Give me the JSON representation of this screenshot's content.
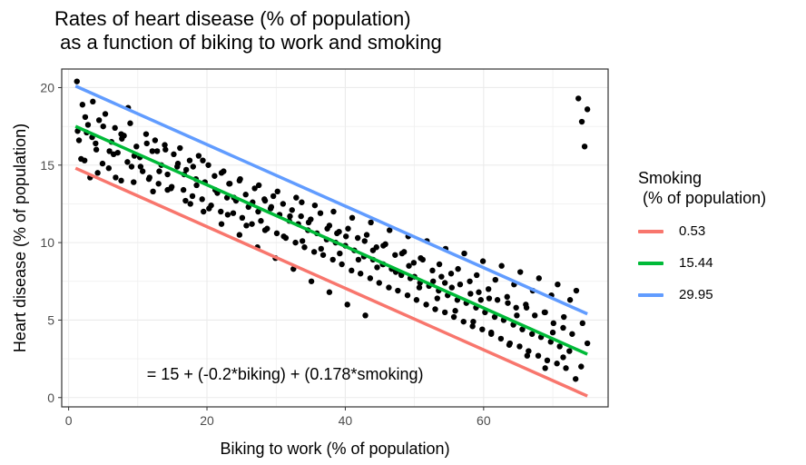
{
  "chart_data": {
    "type": "scatter",
    "title": "Rates of heart disease (% of population)\n as a function of biking to work and smoking",
    "xlabel": "Biking to work (% of population)",
    "ylabel": "Heart disease (% of population)",
    "xlim": [
      -1,
      78
    ],
    "ylim": [
      -0.6,
      21.2
    ],
    "x_ticks": [
      0,
      20,
      40,
      60
    ],
    "y_ticks": [
      0,
      5,
      10,
      15,
      20
    ],
    "grid": true,
    "annotation": {
      "text": "= 15 + (-0.2*biking) + (0.178*smoking)",
      "x": 31.3,
      "y": 1.5
    },
    "legend": {
      "title": "Smoking\n (% of population)",
      "position": "right",
      "entries": [
        {
          "label": "0.53",
          "color": "#F8766D"
        },
        {
          "label": "15.44",
          "color": "#00BA38"
        },
        {
          "label": "29.95",
          "color": "#619CFF"
        }
      ]
    },
    "series": [
      {
        "name": "0.53",
        "type": "line",
        "color": "#F8766D",
        "x": [
          1,
          75
        ],
        "y": [
          14.8,
          0.1
        ]
      },
      {
        "name": "15.44",
        "type": "line",
        "color": "#00BA38",
        "x": [
          1,
          75
        ],
        "y": [
          17.5,
          2.8
        ]
      },
      {
        "name": "29.95",
        "type": "line",
        "color": "#619CFF",
        "x": [
          1,
          75
        ],
        "y": [
          20.1,
          5.4
        ]
      }
    ],
    "points": {
      "color": "#000000",
      "x": [
        1.2,
        1.5,
        2.0,
        2.3,
        2.8,
        3.1,
        3.5,
        4.0,
        4.4,
        4.9,
        5.3,
        5.8,
        6.2,
        6.7,
        7.1,
        7.6,
        8.0,
        8.5,
        8.9,
        9.4,
        9.8,
        10.3,
        10.7,
        11.2,
        11.6,
        12.1,
        12.5,
        13.0,
        13.4,
        13.9,
        14.3,
        14.8,
        15.2,
        15.7,
        16.1,
        16.6,
        17.0,
        17.5,
        17.9,
        18.4,
        18.8,
        19.3,
        19.7,
        20.2,
        20.6,
        21.1,
        21.5,
        22.0,
        22.4,
        22.9,
        23.3,
        23.8,
        24.2,
        24.7,
        25.1,
        25.6,
        26.0,
        26.5,
        26.9,
        27.4,
        27.8,
        28.3,
        28.7,
        29.2,
        29.6,
        30.1,
        30.5,
        31.0,
        31.4,
        31.9,
        32.3,
        32.8,
        33.2,
        33.7,
        34.1,
        34.6,
        35.0,
        35.5,
        35.9,
        36.4,
        36.8,
        37.3,
        37.7,
        38.2,
        38.6,
        39.1,
        39.5,
        40.0,
        40.4,
        40.9,
        41.3,
        41.8,
        42.2,
        42.7,
        43.1,
        43.6,
        44.0,
        44.5,
        44.9,
        45.4,
        45.8,
        46.3,
        46.7,
        47.2,
        47.6,
        48.1,
        48.5,
        49.0,
        49.4,
        49.9,
        50.3,
        50.8,
        51.2,
        51.7,
        52.1,
        52.6,
        53.0,
        53.5,
        53.9,
        54.4,
        54.8,
        55.3,
        55.7,
        56.2,
        56.6,
        57.1,
        57.5,
        58.0,
        58.4,
        58.9,
        59.3,
        59.8,
        60.2,
        60.7,
        61.1,
        61.6,
        62.0,
        62.5,
        62.9,
        63.4,
        63.8,
        64.3,
        64.7,
        65.2,
        65.6,
        66.1,
        66.5,
        67.0,
        67.4,
        67.9,
        68.3,
        68.8,
        69.2,
        69.7,
        70.1,
        70.6,
        71.0,
        71.5,
        71.9,
        72.4,
        72.8,
        73.3,
        73.7,
        74.2,
        74.6,
        75.0,
        1.8,
        2.6,
        3.4,
        4.2,
        5.0,
        5.9,
        6.8,
        7.7,
        8.6,
        9.5,
        10.4,
        11.3,
        12.2,
        13.1,
        14.0,
        14.9,
        15.8,
        16.7,
        17.6,
        18.5,
        19.4,
        20.3,
        21.2,
        22.1,
        23.0,
        23.9,
        24.8,
        25.7,
        26.6,
        27.5,
        28.4,
        29.3,
        30.2,
        31.1,
        32.0,
        32.9,
        33.8,
        34.7,
        35.6,
        36.5,
        37.4,
        38.3,
        39.2,
        40.1,
        41.0,
        41.9,
        42.8,
        43.7,
        44.6,
        45.5,
        46.4,
        47.3,
        48.2,
        49.1,
        50.0,
        50.9,
        51.8,
        52.7,
        53.6,
        54.5,
        55.4,
        56.3,
        57.2,
        58.1,
        59.0,
        59.9,
        60.8,
        61.7,
        62.6,
        63.5,
        64.4,
        65.3,
        66.2,
        67.1,
        68.0,
        68.9,
        69.8,
        70.7,
        71.6,
        72.5,
        73.4,
        74.3,
        1.3,
        3.9,
        6.5,
        9.1,
        11.7,
        14.3,
        16.9,
        19.5,
        22.1,
        24.7,
        27.3,
        29.9,
        32.5,
        35.1,
        37.7,
        40.3,
        42.9,
        45.5,
        48.1,
        50.7,
        53.3,
        55.9,
        58.5,
        61.1,
        63.7,
        66.3,
        68.9,
        71.5,
        74.1,
        2.4,
        7.6,
        12.8,
        18.0,
        23.2,
        28.4,
        33.6,
        38.8,
        44.0,
        49.2,
        54.4,
        59.6,
        64.8,
        70.0,
        75.0
      ],
      "y": [
        20.4,
        16.6,
        18.9,
        15.3,
        17.6,
        14.2,
        19.1,
        16.0,
        17.9,
        15.1,
        18.3,
        14.8,
        16.5,
        17.4,
        15.8,
        14.0,
        16.9,
        15.2,
        17.7,
        13.9,
        16.2,
        15.5,
        14.6,
        17.0,
        14.1,
        15.9,
        16.6,
        13.8,
        15.0,
        16.3,
        14.4,
        13.5,
        15.7,
        14.9,
        16.1,
        13.4,
        14.7,
        15.3,
        13.0,
        14.1,
        15.6,
        12.8,
        13.9,
        15.0,
        12.4,
        14.3,
        13.2,
        12.0,
        14.6,
        12.9,
        13.8,
        11.9,
        12.7,
        14.0,
        11.6,
        13.1,
        12.3,
        11.2,
        13.5,
        12.0,
        11.4,
        12.8,
        10.9,
        12.2,
        13.0,
        10.6,
        11.8,
        12.5,
        10.3,
        11.4,
        12.1,
        10.0,
        11.2,
        12.6,
        9.7,
        10.8,
        11.5,
        9.4,
        10.6,
        11.9,
        9.2,
        10.2,
        11.1,
        8.9,
        10.0,
        10.7,
        8.6,
        9.8,
        10.9,
        8.2,
        9.5,
        10.3,
        8.0,
        9.1,
        10.5,
        7.7,
        8.9,
        9.7,
        7.4,
        8.6,
        9.9,
        7.1,
        8.3,
        9.2,
        6.9,
        8.0,
        9.4,
        6.6,
        7.7,
        8.7,
        6.3,
        7.4,
        8.9,
        6.0,
        7.2,
        8.2,
        5.7,
        6.9,
        7.8,
        5.5,
        6.6,
        8.0,
        5.2,
        6.3,
        7.3,
        4.9,
        6.1,
        7.5,
        4.6,
        5.8,
        6.8,
        4.4,
        5.5,
        7.0,
        4.1,
        5.2,
        6.3,
        3.8,
        5.0,
        6.5,
        3.5,
        4.7,
        5.8,
        3.3,
        4.4,
        6.0,
        3.0,
        4.1,
        5.3,
        2.7,
        3.9,
        5.5,
        2.4,
        3.6,
        4.8,
        2.2,
        3.3,
        4.5,
        1.9,
        3.0,
        4.1,
        1.2,
        19.3,
        17.8,
        16.2,
        18.6,
        15.4,
        17.1,
        16.8,
        14.5,
        17.5,
        15.9,
        14.2,
        16.7,
        18.7,
        15.6,
        14.9,
        16.4,
        13.3,
        14.6,
        16.0,
        13.6,
        15.1,
        14.4,
        12.5,
        13.7,
        15.3,
        12.2,
        13.4,
        14.5,
        11.8,
        12.9,
        14.1,
        11.1,
        12.6,
        13.7,
        10.8,
        12.3,
        13.3,
        10.4,
        11.7,
        12.9,
        10.1,
        11.3,
        12.4,
        9.6,
        10.9,
        12.0,
        9.3,
        10.4,
        11.6,
        8.9,
        10.1,
        11.3,
        8.4,
        9.8,
        10.8,
        8.1,
        9.3,
        10.4,
        7.8,
        9.0,
        10.1,
        7.5,
        8.6,
        9.6,
        7.1,
        8.3,
        9.3,
        6.7,
        7.9,
        8.8,
        6.4,
        7.6,
        8.5,
        6.1,
        7.3,
        8.1,
        5.8,
        6.9,
        7.7,
        5.5,
        6.6,
        7.3,
        5.2,
        6.3,
        6.9,
        4.8,
        17.2,
        16.4,
        15.7,
        14.9,
        14.2,
        13.4,
        12.7,
        12.0,
        11.2,
        10.5,
        9.7,
        9.0,
        8.3,
        7.5,
        6.8,
        6.0,
        5.3,
        8.6,
        7.9,
        7.1,
        6.4,
        5.6,
        4.9,
        4.2,
        3.4,
        2.7,
        1.9,
        2.6,
        2.0,
        18.1,
        17.0,
        15.9,
        14.9,
        13.8,
        12.7,
        11.7,
        10.6,
        9.5,
        8.5,
        7.4,
        6.3,
        5.3,
        4.2,
        3.5
      ]
    }
  }
}
